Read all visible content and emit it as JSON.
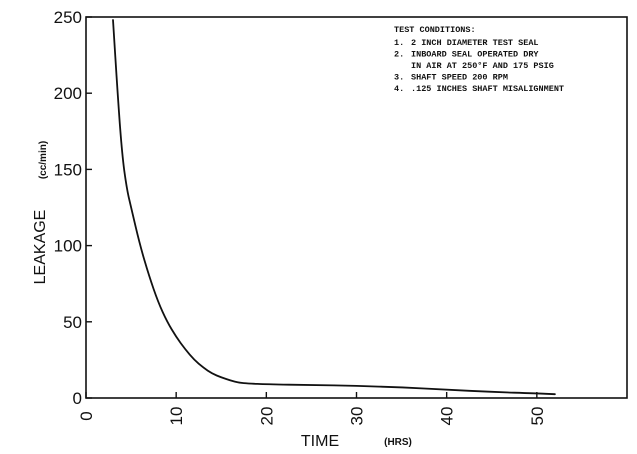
{
  "chart_data": {
    "type": "line",
    "xlabel": "TIME",
    "xunit": "(HRS)",
    "ylabel": "LEAKAGE",
    "yunit": "(cc/min)",
    "xlim": [
      0,
      60
    ],
    "ylim": [
      0,
      250
    ],
    "xticks": [
      "0",
      "10",
      "20",
      "30",
      "40",
      "50"
    ],
    "yticks": [
      "0",
      "50",
      "100",
      "150",
      "200",
      "250"
    ],
    "grid": false,
    "annotations": {
      "heading": "TEST CONDITIONS:",
      "items": [
        {
          "num": "1.",
          "text": "2 INCH DIAMETER TEST SEAL"
        },
        {
          "num": "2.",
          "text": "INBOARD SEAL OPERATED DRY"
        },
        {
          "num": "",
          "text": "IN AIR AT 250°F AND 175 PSIG"
        },
        {
          "num": "3.",
          "text": "SHAFT SPEED 200 RPM"
        },
        {
          "num": "4.",
          "text": ".125 INCHES SHAFT MISALIGNMENT"
        }
      ]
    },
    "series": [
      {
        "x": [
          3,
          3.5,
          4,
          4.5,
          5,
          6,
          7,
          8,
          9,
          10,
          11,
          12,
          13,
          14,
          15,
          16,
          17,
          18,
          20,
          25,
          30,
          35,
          40,
          45,
          50,
          52
        ],
        "y": [
          248,
          200,
          160,
          138,
          125,
          100,
          80,
          63,
          50,
          40,
          32,
          25,
          20,
          16,
          13.5,
          11.5,
          10,
          9.5,
          9,
          8.5,
          8,
          7,
          5.5,
          4,
          3,
          2.5
        ]
      }
    ]
  }
}
